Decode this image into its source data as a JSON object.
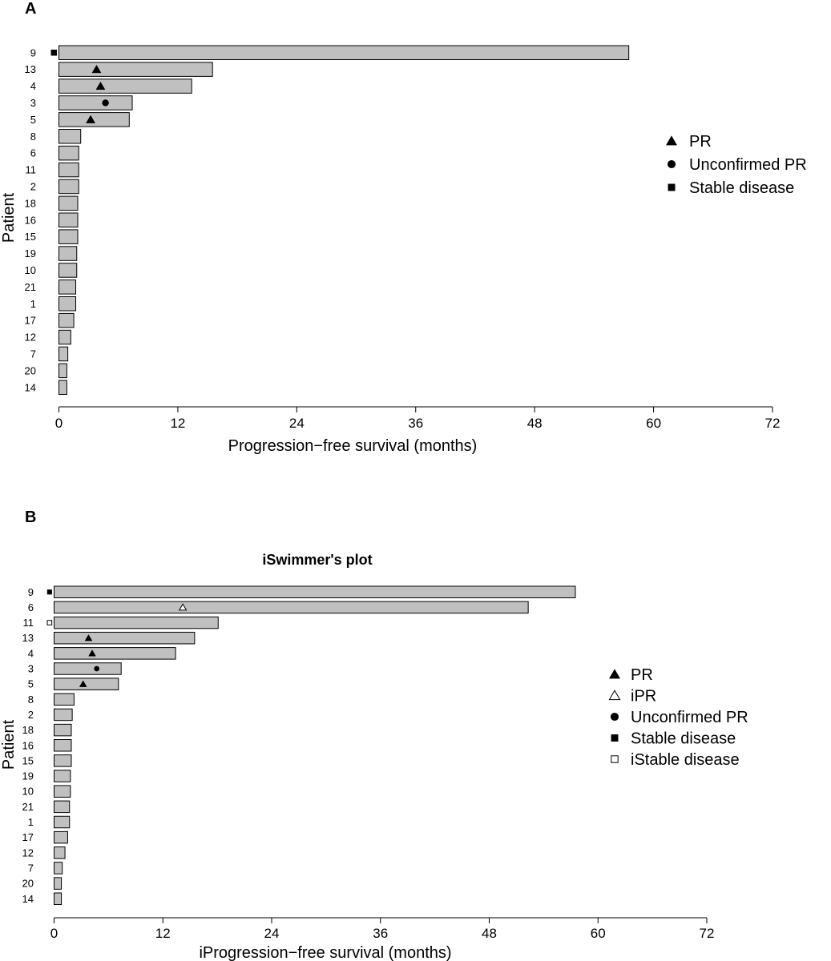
{
  "chart_data": [
    {
      "panel_label": "A",
      "type": "bar",
      "orientation": "horizontal",
      "title": "",
      "xlabel": "Progression−free survival (months)",
      "ylabel": "Patient",
      "xlim": [
        0,
        72
      ],
      "xticks": [
        0,
        12,
        24,
        36,
        48,
        60,
        72
      ],
      "categories": [
        "9",
        "13",
        "4",
        "3",
        "5",
        "8",
        "6",
        "11",
        "2",
        "18",
        "16",
        "15",
        "19",
        "10",
        "21",
        "1",
        "17",
        "12",
        "7",
        "20",
        "14"
      ],
      "values": [
        57.5,
        15.5,
        13.4,
        7.4,
        7.1,
        2.2,
        2.0,
        2.0,
        2.0,
        1.9,
        1.9,
        1.9,
        1.8,
        1.8,
        1.7,
        1.7,
        1.5,
        1.2,
        0.9,
        0.8,
        0.8
      ],
      "markers": [
        {
          "patient": "9",
          "x": -0.5,
          "type": "stable"
        },
        {
          "patient": "13",
          "x": 3.8,
          "type": "pr"
        },
        {
          "patient": "4",
          "x": 4.2,
          "type": "pr"
        },
        {
          "patient": "3",
          "x": 4.7,
          "type": "upr"
        },
        {
          "patient": "5",
          "x": 3.2,
          "type": "pr"
        }
      ],
      "legend": {
        "position": "right",
        "items": [
          {
            "type": "pr",
            "label": "PR"
          },
          {
            "type": "upr",
            "label": "Unconfirmed PR"
          },
          {
            "type": "stable",
            "label": "Stable disease"
          }
        ]
      }
    },
    {
      "panel_label": "B",
      "type": "bar",
      "orientation": "horizontal",
      "title": "iSwimmer's plot",
      "xlabel": "iProgression−free survival (months)",
      "ylabel": "Patient",
      "xlim": [
        0,
        72
      ],
      "xticks": [
        0,
        12,
        24,
        36,
        48,
        60,
        72
      ],
      "categories": [
        "9",
        "6",
        "11",
        "13",
        "4",
        "3",
        "5",
        "8",
        "2",
        "18",
        "16",
        "15",
        "19",
        "10",
        "21",
        "1",
        "17",
        "12",
        "7",
        "20",
        "14"
      ],
      "values": [
        57.5,
        52.3,
        18.1,
        15.5,
        13.4,
        7.4,
        7.1,
        2.2,
        2.0,
        1.9,
        1.9,
        1.9,
        1.8,
        1.8,
        1.7,
        1.7,
        1.5,
        1.2,
        0.9,
        0.8,
        0.8
      ],
      "markers": [
        {
          "patient": "9",
          "x": -0.5,
          "type": "stable"
        },
        {
          "patient": "6",
          "x": 14.2,
          "type": "ipr"
        },
        {
          "patient": "11",
          "x": -0.5,
          "type": "istable"
        },
        {
          "patient": "13",
          "x": 3.8,
          "type": "pr"
        },
        {
          "patient": "4",
          "x": 4.2,
          "type": "pr"
        },
        {
          "patient": "3",
          "x": 4.7,
          "type": "upr"
        },
        {
          "patient": "5",
          "x": 3.2,
          "type": "pr"
        }
      ],
      "legend": {
        "position": "right",
        "items": [
          {
            "type": "pr",
            "label": "PR"
          },
          {
            "type": "ipr",
            "label": "iPR"
          },
          {
            "type": "upr",
            "label": "Unconfirmed PR"
          },
          {
            "type": "stable",
            "label": "Stable disease"
          },
          {
            "type": "istable",
            "label": "iStable disease"
          }
        ]
      }
    }
  ]
}
